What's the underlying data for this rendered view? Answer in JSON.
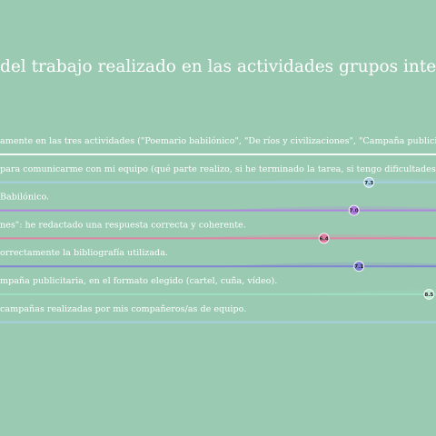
{
  "chart_data": {
    "type": "bar",
    "title": "del trabajo realizado en las actividades grupos interna",
    "categories": [
      "amente en las tres actividades (\"Poemario babilónico\", \"De ríos y civilizaciones\", \"Campaña publici",
      "para comunicarme con mi equipo (qué parte realizo, si he terminado la tarea, si tengo dificultades",
      "Babilónico.",
      "nes\": he redactado una respuesta correcta y coherente.",
      "orrectamente la bibliografía utilizada.",
      "mpaña publicitaria, en el formato elegido (cartel, cuña, vídeo).",
      "campañas realizadas por mis compañeros/as de equipo."
    ],
    "values": [
      null,
      7.3,
      7.0,
      6.4,
      7.1,
      8.5,
      null
    ],
    "value_labels": [
      "",
      "7.3",
      "7.0",
      "6.4",
      "7.1",
      "8.5",
      ""
    ],
    "xlim": [
      0,
      10
    ],
    "grid": false,
    "legend": "none"
  },
  "colors": {
    "background": "#9bcab3",
    "text": "#ffffff",
    "rows": [
      "#ffffff",
      "#a9d0e3",
      "#b07fe0",
      "#e27ea3",
      "#7d7fd3",
      "#9fe0c3",
      "#a9d0e3"
    ],
    "dots": [
      "#ffffff",
      "#a9d0e3",
      "#b07fe0",
      "#e27ea3",
      "#7d7fd3",
      "#bfead6",
      "#a9d0e3"
    ]
  }
}
